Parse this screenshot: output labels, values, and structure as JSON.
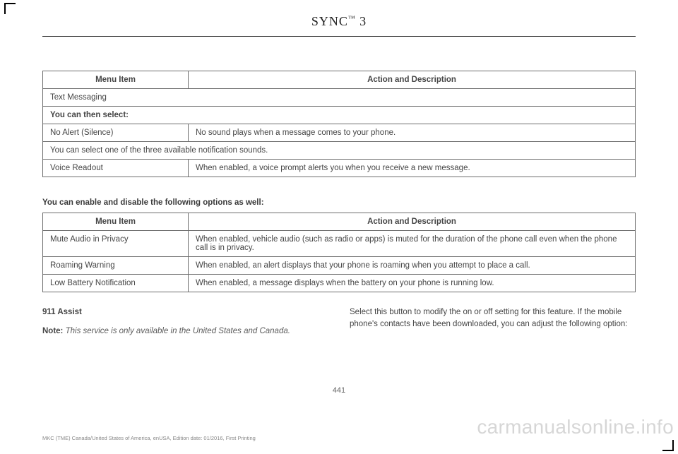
{
  "header": {
    "title_part1": "SYNC",
    "title_tm": "™",
    "title_part2": " 3"
  },
  "table1": {
    "header_menu": "Menu Item",
    "header_desc": "Action and Description",
    "rows": [
      {
        "menu": "Text Messaging",
        "desc": "",
        "span": true,
        "bold": false
      },
      {
        "menu": "You can then select:",
        "desc": "",
        "span": true,
        "bold": true
      },
      {
        "menu": "No Alert (Silence)",
        "desc": "No sound plays when a message comes to your phone.",
        "span": false,
        "bold": false
      },
      {
        "menu": "You can select one of the three available notification sounds.",
        "desc": "",
        "span": true,
        "bold": false
      },
      {
        "menu": "Voice Readout",
        "desc": "When enabled, a voice prompt alerts you when you receive a new message.",
        "span": false,
        "bold": false
      }
    ]
  },
  "midhead": "You can enable and disable the following options as well:",
  "table2": {
    "header_menu": "Menu Item",
    "header_desc": "Action and Description",
    "rows": [
      {
        "menu": "Mute Audio in Privacy",
        "desc": "When enabled, vehicle audio (such as radio or apps) is muted for the duration of the phone call even when the phone call is in privacy."
      },
      {
        "menu": "Roaming Warning",
        "desc": "When enabled, an alert displays that your phone is roaming when you attempt to place a call."
      },
      {
        "menu": "Low Battery Notification",
        "desc": "When enabled, a message displays when the battery on your phone is running low."
      }
    ]
  },
  "section": {
    "heading": "911 Assist",
    "note_lead": "Note: ",
    "note_body": "This service is only available in the United States and Canada.",
    "col2": "Select this button to modify the on or off setting for this feature. If the mobile phone's contacts have been downloaded, you can adjust the following option:"
  },
  "pagenum": "441",
  "footer": "MKC (TME) Canada/United States of America, enUSA, Edition date: 01/2016, First Printing",
  "watermark": "carmanualsonline.info"
}
